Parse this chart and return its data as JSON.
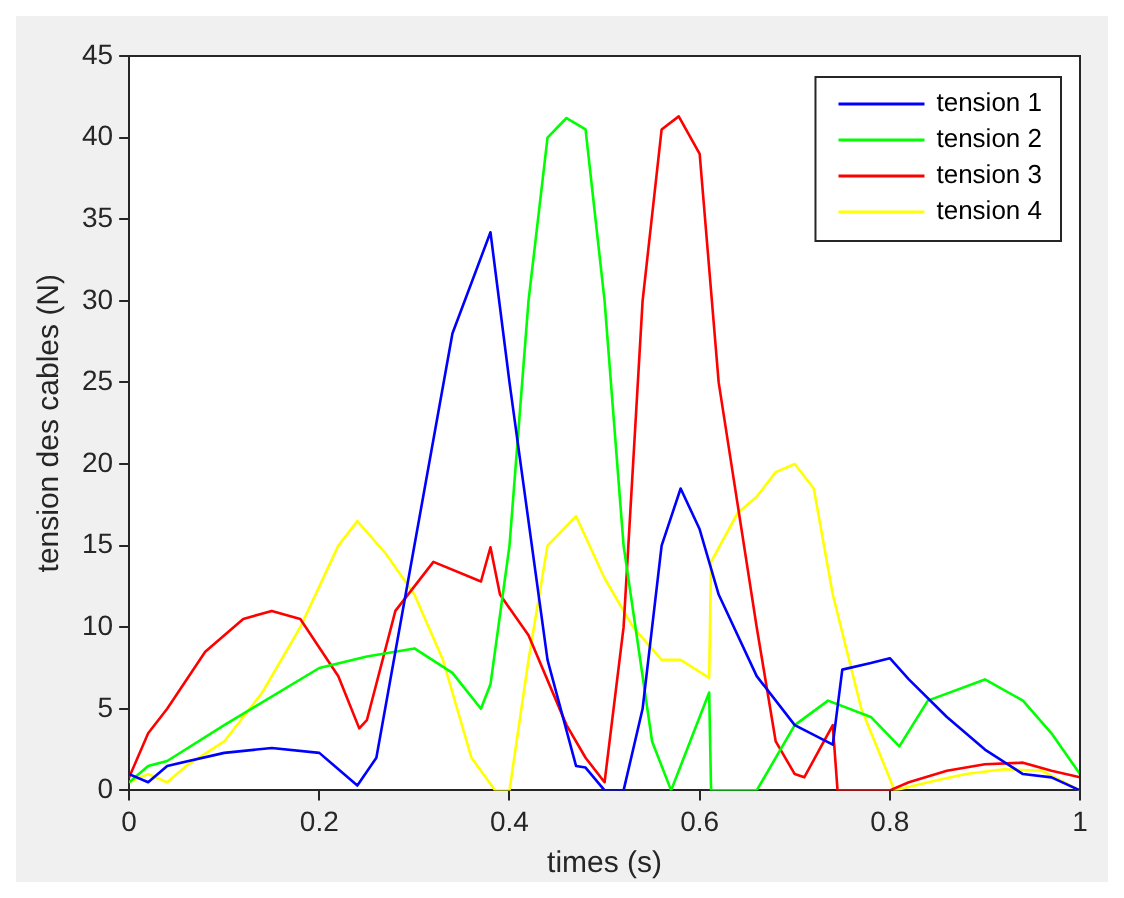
{
  "chart_data": {
    "type": "line",
    "xlabel": "times (s)",
    "ylabel": "tension des cables (N)",
    "xlim": [
      0,
      1
    ],
    "xticks": [
      0,
      0.2,
      0.4,
      0.6,
      0.8,
      1
    ],
    "ylim": [
      0,
      45
    ],
    "yticks": [
      0,
      5,
      10,
      15,
      20,
      25,
      30,
      35,
      40,
      45
    ],
    "grid": false,
    "legend": "top right",
    "marker": "none",
    "line_style": "solid",
    "series": [
      {
        "name": "tension 1",
        "color": "#0000ff",
        "x": [
          0,
          0.02,
          0.04,
          0.1,
          0.15,
          0.2,
          0.24,
          0.26,
          0.3,
          0.34,
          0.38,
          0.4,
          0.44,
          0.47,
          0.48,
          0.5,
          0.52,
          0.54,
          0.56,
          0.58,
          0.6,
          0.62,
          0.66,
          0.7,
          0.74,
          0.75,
          0.78,
          0.8,
          0.82,
          0.86,
          0.9,
          0.94,
          0.97,
          1
        ],
        "values": [
          1,
          0.5,
          1.5,
          2.3,
          2.6,
          2.3,
          0.3,
          2,
          15,
          28,
          34.2,
          25,
          8,
          1.5,
          1.4,
          0,
          0,
          5,
          15,
          18.5,
          16,
          12,
          7,
          4,
          2.8,
          7.4,
          7.8,
          8.1,
          6.8,
          4.5,
          2.5,
          1,
          0.8,
          0
        ]
      },
      {
        "name": "tension 2",
        "color": "#00ff00",
        "x": [
          0,
          0.02,
          0.04,
          0.1,
          0.2,
          0.25,
          0.3,
          0.34,
          0.37,
          0.38,
          0.4,
          0.42,
          0.44,
          0.46,
          0.48,
          0.5,
          0.52,
          0.55,
          0.57,
          0.61,
          0.612,
          0.66,
          0.7,
          0.735,
          0.78,
          0.81,
          0.84,
          0.9,
          0.94,
          0.97,
          1
        ],
        "values": [
          0.5,
          1.5,
          1.8,
          4,
          7.5,
          8.2,
          8.7,
          7.2,
          5,
          6.5,
          15,
          30,
          40,
          41.2,
          40.5,
          30,
          15,
          3,
          0,
          6,
          0,
          0,
          4,
          5.5,
          4.5,
          2.7,
          5.5,
          6.8,
          5.5,
          3.5,
          1
        ]
      },
      {
        "name": "tension 3",
        "color": "#ff0000",
        "x": [
          0,
          0.02,
          0.04,
          0.08,
          0.12,
          0.15,
          0.18,
          0.22,
          0.242,
          0.25,
          0.28,
          0.32,
          0.37,
          0.38,
          0.39,
          0.42,
          0.46,
          0.48,
          0.5,
          0.52,
          0.54,
          0.56,
          0.578,
          0.6,
          0.62,
          0.66,
          0.68,
          0.7,
          0.71,
          0.74,
          0.745,
          0.8,
          0.82,
          0.86,
          0.9,
          0.94,
          0.97,
          1
        ],
        "values": [
          0.8,
          3.5,
          5,
          8.5,
          10.5,
          11,
          10.5,
          7,
          3.8,
          4.3,
          11,
          14,
          12.8,
          14.9,
          12,
          9.5,
          4,
          2,
          0.5,
          10,
          30,
          40.5,
          41.3,
          39,
          25,
          10,
          3,
          1,
          0.8,
          4,
          0,
          0,
          0.5,
          1.2,
          1.6,
          1.7,
          1.2,
          0.8
        ]
      },
      {
        "name": "tension 4",
        "color": "#ffff00",
        "x": [
          0,
          0.02,
          0.04,
          0.06,
          0.1,
          0.14,
          0.18,
          0.22,
          0.24,
          0.27,
          0.3,
          0.33,
          0.36,
          0.385,
          0.4,
          0.42,
          0.44,
          0.47,
          0.5,
          0.53,
          0.56,
          0.58,
          0.61,
          0.612,
          0.64,
          0.66,
          0.68,
          0.7,
          0.72,
          0.74,
          0.77,
          0.805,
          0.84,
          0.88,
          0.92,
          0.96,
          1
        ],
        "values": [
          0.5,
          1,
          0.5,
          1.5,
          3,
          6,
          10,
          15,
          16.5,
          14.5,
          12,
          8,
          2,
          0,
          0,
          8,
          15,
          16.8,
          13,
          10,
          8,
          8,
          6.9,
          14,
          17,
          18,
          19.5,
          20,
          18.5,
          12,
          5,
          0,
          0.5,
          1,
          1.3,
          1.2,
          0
        ]
      }
    ]
  }
}
